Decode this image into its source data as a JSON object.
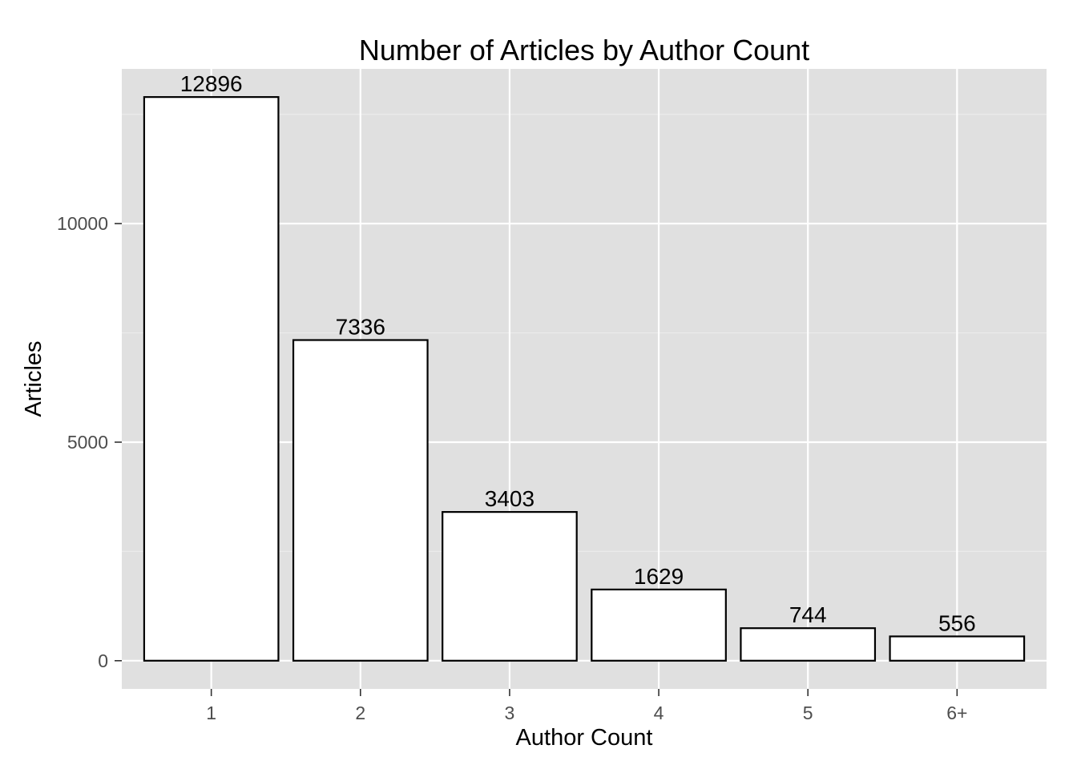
{
  "chart_data": {
    "type": "bar",
    "title": "Number of Articles by Author Count",
    "xlabel": "Author Count",
    "ylabel": "Articles",
    "categories": [
      "1",
      "2",
      "3",
      "4",
      "5",
      "6+"
    ],
    "values": [
      12896,
      7336,
      3403,
      1629,
      744,
      556
    ],
    "data_labels": [
      "12896",
      "7336",
      "3403",
      "1629",
      "744",
      "556"
    ],
    "y_ticks": [
      0,
      5000,
      10000
    ],
    "y_tick_labels": [
      "0",
      "5000",
      "10000"
    ],
    "ylim": [
      -645,
      13540
    ],
    "grid": true,
    "legend": "none",
    "colors": {
      "panel_background": "#e0e0e0",
      "grid_major": "#ffffff",
      "grid_minor": "#ebebeb",
      "bar_fill": "#ffffff",
      "bar_outline": "#000000",
      "tick_text": "#4d4d4d"
    }
  }
}
